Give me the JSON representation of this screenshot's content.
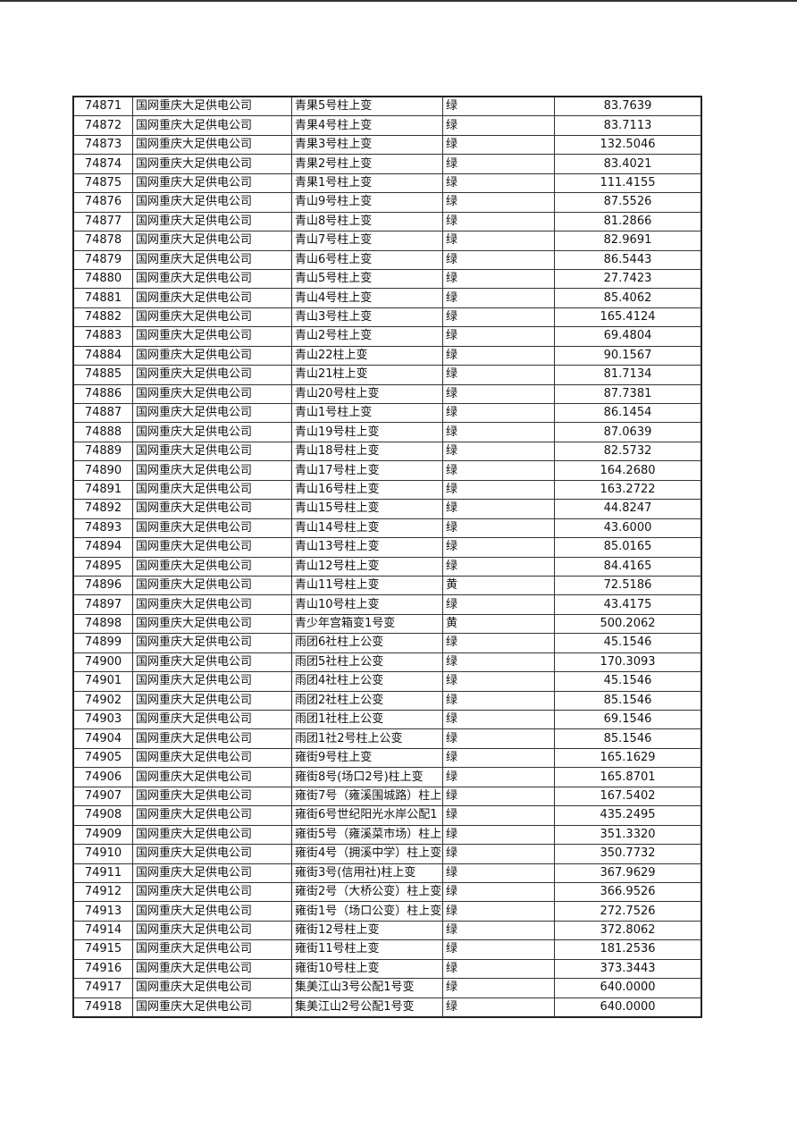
{
  "table": {
    "rows": [
      [
        "74871",
        "国网重庆大足供电公司",
        "青果5号柱上变",
        "绿",
        "83.7639"
      ],
      [
        "74872",
        "国网重庆大足供电公司",
        "青果4号柱上变",
        "绿",
        "83.7113"
      ],
      [
        "74873",
        "国网重庆大足供电公司",
        "青果3号柱上变",
        "绿",
        "132.5046"
      ],
      [
        "74874",
        "国网重庆大足供电公司",
        "青果2号柱上变",
        "绿",
        "83.4021"
      ],
      [
        "74875",
        "国网重庆大足供电公司",
        "青果1号柱上变",
        "绿",
        "111.4155"
      ],
      [
        "74876",
        "国网重庆大足供电公司",
        "青山9号柱上变",
        "绿",
        "87.5526"
      ],
      [
        "74877",
        "国网重庆大足供电公司",
        "青山8号柱上变",
        "绿",
        "81.2866"
      ],
      [
        "74878",
        "国网重庆大足供电公司",
        "青山7号柱上变",
        "绿",
        "82.9691"
      ],
      [
        "74879",
        "国网重庆大足供电公司",
        "青山6号柱上变",
        "绿",
        "86.5443"
      ],
      [
        "74880",
        "国网重庆大足供电公司",
        "青山5号柱上变",
        "绿",
        "27.7423"
      ],
      [
        "74881",
        "国网重庆大足供电公司",
        "青山4号柱上变",
        "绿",
        "85.4062"
      ],
      [
        "74882",
        "国网重庆大足供电公司",
        "青山3号柱上变",
        "绿",
        "165.4124"
      ],
      [
        "74883",
        "国网重庆大足供电公司",
        "青山2号柱上变",
        "绿",
        "69.4804"
      ],
      [
        "74884",
        "国网重庆大足供电公司",
        "青山22柱上变",
        "绿",
        "90.1567"
      ],
      [
        "74885",
        "国网重庆大足供电公司",
        "青山21柱上变",
        "绿",
        "81.7134"
      ],
      [
        "74886",
        "国网重庆大足供电公司",
        "青山20号柱上变",
        "绿",
        "87.7381"
      ],
      [
        "74887",
        "国网重庆大足供电公司",
        "青山1号柱上变",
        "绿",
        "86.1454"
      ],
      [
        "74888",
        "国网重庆大足供电公司",
        "青山19号柱上变",
        "绿",
        "87.0639"
      ],
      [
        "74889",
        "国网重庆大足供电公司",
        "青山18号柱上变",
        "绿",
        "82.5732"
      ],
      [
        "74890",
        "国网重庆大足供电公司",
        "青山17号柱上变",
        "绿",
        "164.2680"
      ],
      [
        "74891",
        "国网重庆大足供电公司",
        "青山16号柱上变",
        "绿",
        "163.2722"
      ],
      [
        "74892",
        "国网重庆大足供电公司",
        "青山15号柱上变",
        "绿",
        "44.8247"
      ],
      [
        "74893",
        "国网重庆大足供电公司",
        "青山14号柱上变",
        "绿",
        "43.6000"
      ],
      [
        "74894",
        "国网重庆大足供电公司",
        "青山13号柱上变",
        "绿",
        "85.0165"
      ],
      [
        "74895",
        "国网重庆大足供电公司",
        "青山12号柱上变",
        "绿",
        "84.4165"
      ],
      [
        "74896",
        "国网重庆大足供电公司",
        "青山11号柱上变",
        "黄",
        "72.5186"
      ],
      [
        "74897",
        "国网重庆大足供电公司",
        "青山10号柱上变",
        "绿",
        "43.4175"
      ],
      [
        "74898",
        "国网重庆大足供电公司",
        "青少年宫箱变1号变",
        "黄",
        "500.2062"
      ],
      [
        "74899",
        "国网重庆大足供电公司",
        "雨团6社柱上公变",
        "绿",
        "45.1546"
      ],
      [
        "74900",
        "国网重庆大足供电公司",
        "雨团5社柱上公变",
        "绿",
        "170.3093"
      ],
      [
        "74901",
        "国网重庆大足供电公司",
        "雨团4社柱上公变",
        "绿",
        "45.1546"
      ],
      [
        "74902",
        "国网重庆大足供电公司",
        "雨团2社柱上公变",
        "绿",
        "85.1546"
      ],
      [
        "74903",
        "国网重庆大足供电公司",
        "雨团1社柱上公变",
        "绿",
        "69.1546"
      ],
      [
        "74904",
        "国网重庆大足供电公司",
        "雨团1社2号柱上公变",
        "绿",
        "85.1546"
      ],
      [
        "74905",
        "国网重庆大足供电公司",
        "雍街9号柱上变",
        "绿",
        "165.1629"
      ],
      [
        "74906",
        "国网重庆大足供电公司",
        "雍街8号(场口2号)柱上变",
        "绿",
        "165.8701"
      ],
      [
        "74907",
        "国网重庆大足供电公司",
        "雍街7号（雍溪围城路）柱上",
        "绿",
        "167.5402"
      ],
      [
        "74908",
        "国网重庆大足供电公司",
        "雍街6号世纪阳光水岸公配1",
        "绿",
        "435.2495"
      ],
      [
        "74909",
        "国网重庆大足供电公司",
        "雍街5号（雍溪菜市场）柱上",
        "绿",
        "351.3320"
      ],
      [
        "74910",
        "国网重庆大足供电公司",
        "雍街4号（拥溪中学）柱上变",
        "绿",
        "350.7732"
      ],
      [
        "74911",
        "国网重庆大足供电公司",
        "雍街3号(信用社)柱上变",
        "绿",
        "367.9629"
      ],
      [
        "74912",
        "国网重庆大足供电公司",
        "雍街2号（大桥公变）柱上变",
        "绿",
        "366.9526"
      ],
      [
        "74913",
        "国网重庆大足供电公司",
        "雍街1号（场口公变）柱上变",
        "绿",
        "272.7526"
      ],
      [
        "74914",
        "国网重庆大足供电公司",
        "雍街12号柱上变",
        "绿",
        "372.8062"
      ],
      [
        "74915",
        "国网重庆大足供电公司",
        "雍街11号柱上变",
        "绿",
        "181.2536"
      ],
      [
        "74916",
        "国网重庆大足供电公司",
        "雍街10号柱上变",
        "绿",
        "373.3443"
      ],
      [
        "74917",
        "国网重庆大足供电公司",
        "集美江山3号公配1号变",
        "绿",
        "640.0000"
      ],
      [
        "74918",
        "国网重庆大足供电公司",
        "集美江山2号公配1号变",
        "绿",
        "640.0000"
      ]
    ]
  }
}
